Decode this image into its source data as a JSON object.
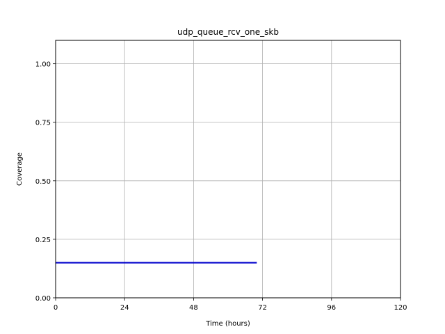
{
  "chart_data": {
    "type": "line",
    "title": "udp_queue_rcv_one_skb",
    "xlabel": "Time (hours)",
    "ylabel": "Coverage",
    "xlim": [
      0,
      120
    ],
    "ylim": [
      0,
      1.1
    ],
    "xticks": [
      0,
      24,
      48,
      72,
      96,
      120
    ],
    "xtick_labels": [
      "0",
      "24",
      "48",
      "72",
      "96",
      "120"
    ],
    "yticks": [
      0.0,
      0.25,
      0.5,
      0.75,
      1.0
    ],
    "ytick_labels": [
      "0.00",
      "0.25",
      "0.50",
      "0.75",
      "1.00"
    ],
    "grid": true,
    "series": [
      {
        "color": "#0000cc",
        "x": [
          0,
          70
        ],
        "y": [
          0.15,
          0.15
        ]
      }
    ]
  }
}
